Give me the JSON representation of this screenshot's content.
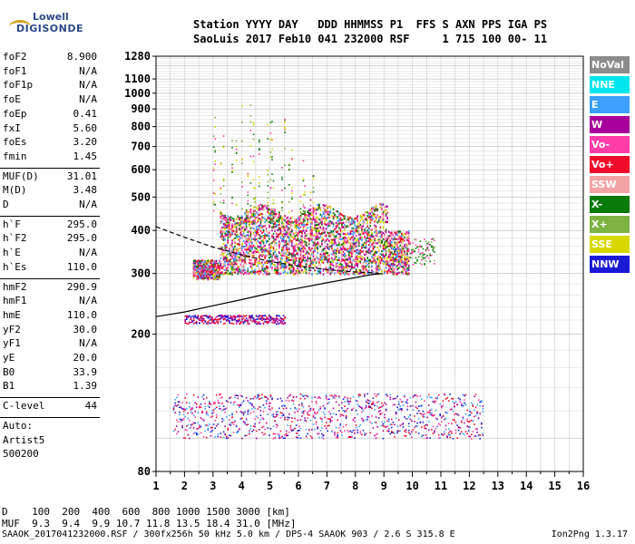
{
  "logo": {
    "line1": "Lowell",
    "line2": "DIGISONDE"
  },
  "header": {
    "line1": "Station YYYY DAY   DDD HHMMSS P1  FFS S AXN PPS IGA PS",
    "line2": "SaoLuis 2017 Feb10 041 232000 RSF     1 715 100 00- 11"
  },
  "params_group1": [
    {
      "name": "foF2",
      "value": "8.900"
    },
    {
      "name": "foF1",
      "value": "N/A"
    },
    {
      "name": "foF1p",
      "value": "N/A"
    },
    {
      "name": "foE",
      "value": "N/A"
    },
    {
      "name": "foEp",
      "value": "0.41"
    },
    {
      "name": "fxI",
      "value": "5.60"
    },
    {
      "name": "foEs",
      "value": "3.20"
    },
    {
      "name": "fmin",
      "value": "1.45"
    }
  ],
  "params_group2": [
    {
      "name": "MUF(D)",
      "value": "31.01"
    },
    {
      "name": "M(D)",
      "value": "3.48"
    },
    {
      "name": "D",
      "value": "N/A"
    }
  ],
  "params_group3": [
    {
      "name": "h`F",
      "value": "295.0"
    },
    {
      "name": "h`F2",
      "value": "295.0"
    },
    {
      "name": "h`E",
      "value": "N/A"
    },
    {
      "name": "h`Es",
      "value": "110.0"
    }
  ],
  "params_group4": [
    {
      "name": "hmF2",
      "value": "290.9"
    },
    {
      "name": "hmF1",
      "value": "N/A"
    },
    {
      "name": "hmE",
      "value": "110.0"
    },
    {
      "name": "yF2",
      "value": "30.0"
    },
    {
      "name": "yF1",
      "value": "N/A"
    },
    {
      "name": "yE",
      "value": "20.0"
    },
    {
      "name": "B0",
      "value": "33.9"
    },
    {
      "name": "B1",
      "value": "1.39"
    }
  ],
  "clevel": {
    "name": "C-level",
    "value": "44"
  },
  "autoscaler": {
    "line1": "Auto:",
    "line2": "Artist5",
    "line3": "500200"
  },
  "legend": [
    {
      "label": "NoVal",
      "color": "#8c8c8c"
    },
    {
      "label": "NNE",
      "color": "#00e5ee"
    },
    {
      "label": "E",
      "color": "#3ba0ff"
    },
    {
      "label": "W",
      "color": "#a8009a"
    },
    {
      "label": "Vo-",
      "color": "#ff3ca8"
    },
    {
      "label": "Vo+",
      "color": "#ee0b2c"
    },
    {
      "label": "SSW",
      "color": "#f2a3a3"
    },
    {
      "label": "X-",
      "color": "#0a7a0a"
    },
    {
      "label": "X+",
      "color": "#7cb342"
    },
    {
      "label": "SSE",
      "color": "#d8d800"
    },
    {
      "label": "NNW",
      "color": "#1a1ad6"
    }
  ],
  "bottom": {
    "row1": "D    100  200  400  600  800 1000 1500 3000 [km]",
    "row2": "MUF  9.3  9.4  9.9 10.7 11.8 13.5 18.4 31.0 [MHz]"
  },
  "footer": {
    "left": "SAAOK_2017041232000.RSF / 300fx256h 50 kHz 5.0 km / DPS-4 SAAOK 903 / 2.6 S 315.8 E",
    "right": "Ion2Png 1.3.17"
  },
  "chart_data": {
    "type": "scatter",
    "title": "",
    "xlabel": "",
    "ylabel": "",
    "xlim": [
      1,
      16
    ],
    "ylim": [
      80,
      1280
    ],
    "yscale": "log",
    "grid": true,
    "x_ticks": [
      "1",
      "2",
      "3",
      "4",
      "5",
      "6",
      "7",
      "8",
      "9",
      "10",
      "11",
      "12",
      "13",
      "14",
      "15",
      "16"
    ],
    "y_ticks": [
      "80",
      "200",
      "300",
      "400",
      "500",
      "600",
      "700",
      "800",
      "900",
      "1000",
      "1100",
      "1280"
    ],
    "clusters": [
      {
        "name": "E-layer echoes",
        "x": [
          1.6,
          12.5
        ],
        "y": [
          100,
          135
        ],
        "colors": [
          "#1a1ad6",
          "#a8009a",
          "#ff3ca8",
          "#ee0b2c",
          "#3ba0ff"
        ]
      },
      {
        "name": "Es echoes",
        "x": [
          2.0,
          5.5
        ],
        "y": [
          215,
          228
        ],
        "colors": [
          "#1a1ad6",
          "#a8009a",
          "#ee0b2c"
        ]
      },
      {
        "name": "F-layer echoes",
        "x": [
          2.3,
          9.9
        ],
        "y": [
          290,
          480
        ],
        "colors": [
          "#ff3ca8",
          "#ee0b2c",
          "#a8009a",
          "#0a7a0a",
          "#d8d800",
          "#f2a3a3",
          "#3ba0ff"
        ]
      },
      {
        "name": "Spread-F",
        "x": [
          3.0,
          6.5
        ],
        "y": [
          420,
          1100
        ],
        "colors": [
          "#d8d800",
          "#7cb342",
          "#0a7a0a",
          "#ff3ca8"
        ]
      },
      {
        "name": "Tail",
        "x": [
          9.9,
          10.8
        ],
        "y": [
          320,
          380
        ],
        "colors": [
          "#ff3ca8",
          "#7cb342",
          "#0a7a0a"
        ]
      }
    ],
    "trace_virtual": {
      "x": [
        1.0,
        2.0,
        3.0,
        4.0,
        5.0,
        6.0,
        7.0,
        8.0,
        8.5,
        8.9
      ],
      "y": [
        225,
        232,
        242,
        252,
        263,
        272,
        282,
        292,
        297,
        300
      ]
    },
    "trace_profile": {
      "x": [
        1.0,
        2.0,
        3.0,
        4.0,
        5.0,
        6.0,
        7.0,
        7.5,
        8.0,
        8.5,
        8.9
      ],
      "y": [
        410,
        382,
        358,
        340,
        325,
        315,
        308,
        305,
        303,
        302,
        300
      ]
    }
  }
}
